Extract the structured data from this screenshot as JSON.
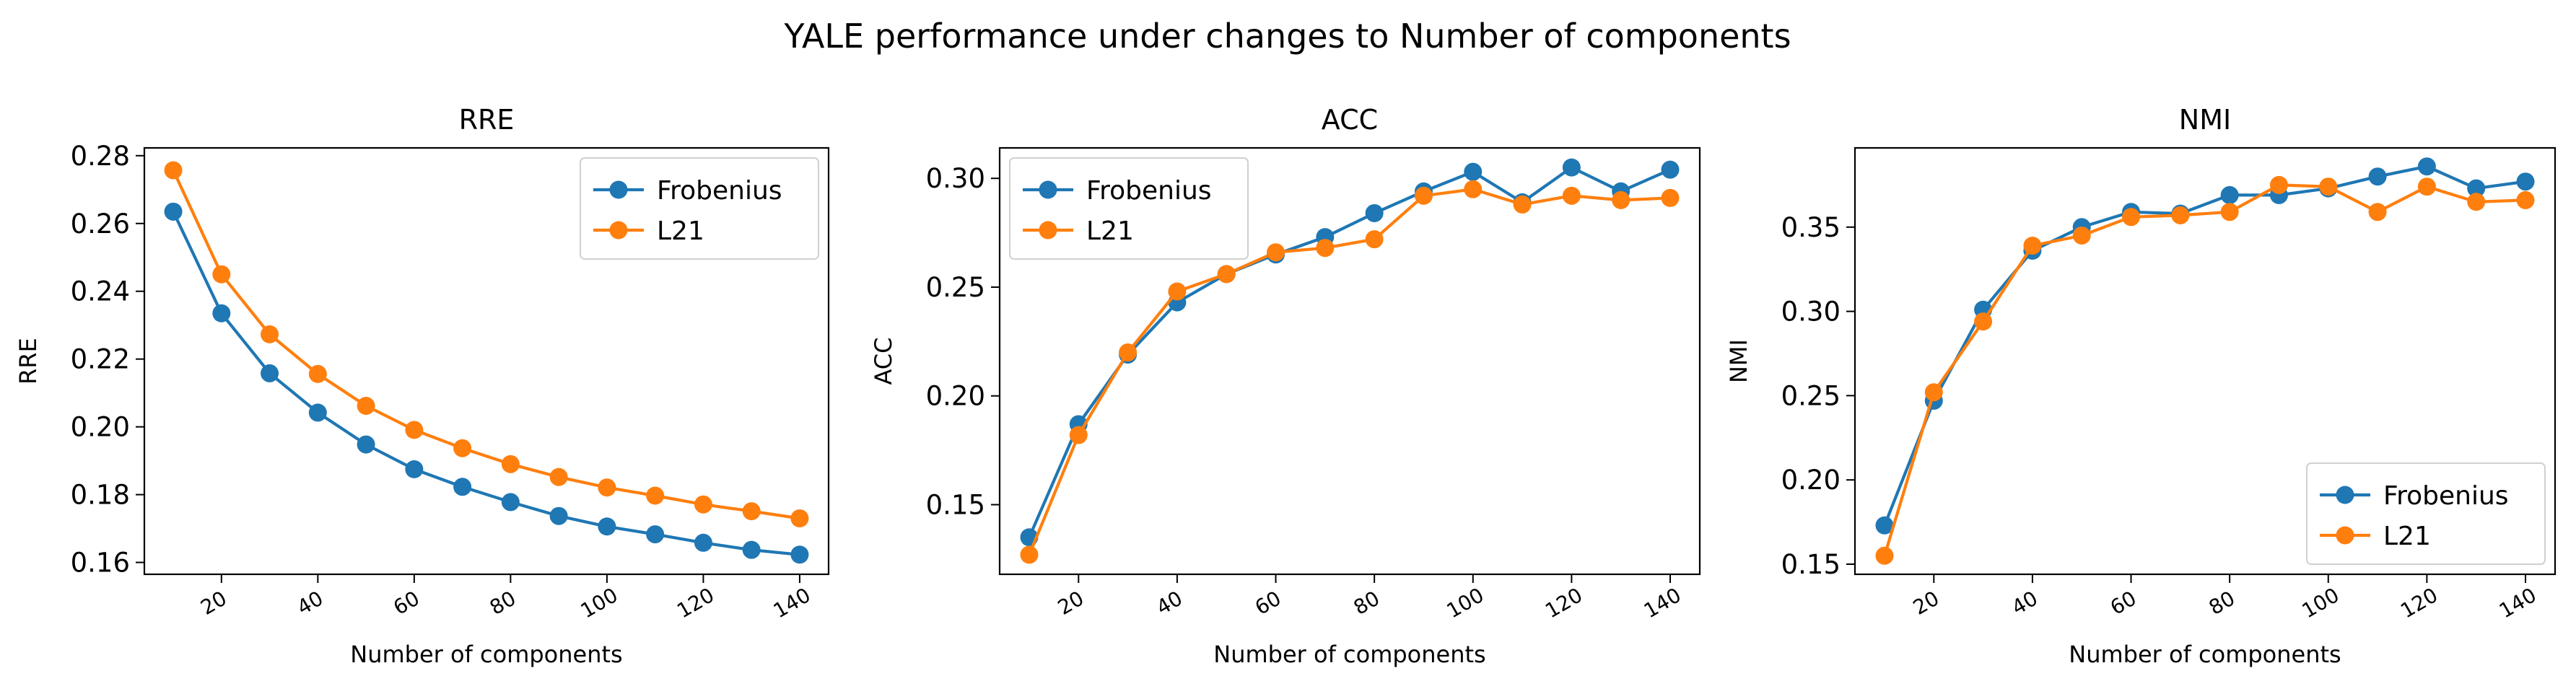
{
  "figure": {
    "title": "YALE performance under changes to Number of components"
  },
  "colors": {
    "frobenius": "#1f77b4",
    "l21": "#ff7f0e"
  },
  "chart_data": [
    {
      "type": "line",
      "title": "RRE",
      "xlabel": "Number of components",
      "ylabel": "RRE",
      "x": [
        10,
        20,
        30,
        40,
        50,
        60,
        70,
        80,
        90,
        100,
        110,
        120,
        130,
        140
      ],
      "xticks": [
        "20",
        "40",
        "60",
        "80",
        "100",
        "120",
        "140"
      ],
      "xlim": [
        4,
        146
      ],
      "yticks": [
        "0.16",
        "0.18",
        "0.20",
        "0.22",
        "0.24",
        "0.26",
        "0.28"
      ],
      "ylim": [
        0.1565,
        0.2823
      ],
      "legend": "upper right",
      "series": [
        {
          "name": "Frobenius",
          "values": [
            0.2635,
            0.2335,
            0.2158,
            0.2042,
            0.1948,
            0.1875,
            0.1823,
            0.1778,
            0.1737,
            0.1706,
            0.1683,
            0.1658,
            0.1637,
            0.1623
          ]
        },
        {
          "name": "L21",
          "values": [
            0.2757,
            0.245,
            0.2273,
            0.2156,
            0.2062,
            0.1991,
            0.1937,
            0.189,
            0.1852,
            0.1821,
            0.1797,
            0.1771,
            0.1751,
            0.173
          ]
        }
      ]
    },
    {
      "type": "line",
      "title": "ACC",
      "xlabel": "Number of components",
      "ylabel": "ACC",
      "x": [
        10,
        20,
        30,
        40,
        50,
        60,
        70,
        80,
        90,
        100,
        110,
        120,
        130,
        140
      ],
      "xticks": [
        "20",
        "40",
        "60",
        "80",
        "100",
        "120",
        "140"
      ],
      "xlim": [
        4,
        146
      ],
      "yticks": [
        "0.15",
        "0.20",
        "0.25",
        "0.30"
      ],
      "ylim": [
        0.118,
        0.314
      ],
      "legend": "upper left",
      "series": [
        {
          "name": "Frobenius",
          "values": [
            0.135,
            0.187,
            0.219,
            0.243,
            0.256,
            0.265,
            0.273,
            0.284,
            0.294,
            0.303,
            0.289,
            0.305,
            0.294,
            0.304
          ]
        },
        {
          "name": "L21",
          "values": [
            0.127,
            0.182,
            0.22,
            0.248,
            0.256,
            0.266,
            0.268,
            0.272,
            0.292,
            0.295,
            0.288,
            0.292,
            0.29,
            0.291
          ]
        }
      ]
    },
    {
      "type": "line",
      "title": "NMI",
      "xlabel": "Number of components",
      "ylabel": "NMI",
      "x": [
        10,
        20,
        30,
        40,
        50,
        60,
        70,
        80,
        90,
        100,
        110,
        120,
        130,
        140
      ],
      "xticks": [
        "20",
        "40",
        "60",
        "80",
        "100",
        "120",
        "140"
      ],
      "xlim": [
        4,
        146
      ],
      "yticks": [
        "0.15",
        "0.20",
        "0.25",
        "0.30",
        "0.35"
      ],
      "ylim": [
        0.144,
        0.397
      ],
      "legend": "lower right",
      "series": [
        {
          "name": "Frobenius",
          "values": [
            0.173,
            0.247,
            0.301,
            0.336,
            0.35,
            0.359,
            0.358,
            0.369,
            0.369,
            0.373,
            0.38,
            0.386,
            0.373,
            0.377
          ]
        },
        {
          "name": "L21",
          "values": [
            0.155,
            0.252,
            0.294,
            0.339,
            0.345,
            0.356,
            0.357,
            0.359,
            0.375,
            0.374,
            0.359,
            0.374,
            0.365,
            0.366
          ]
        }
      ]
    }
  ]
}
